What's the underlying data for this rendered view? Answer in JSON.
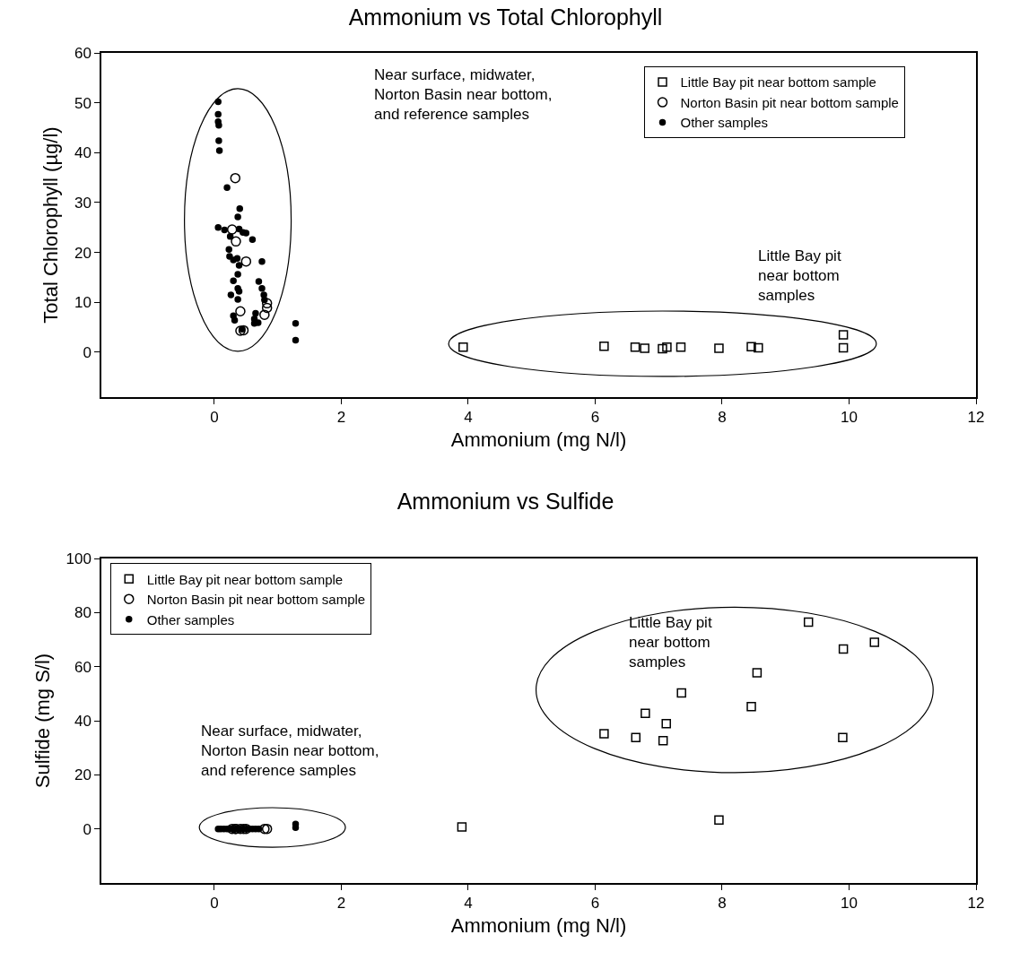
{
  "chart_data": [
    {
      "type": "scatter",
      "title": "Ammonium vs Total Chlorophyll",
      "xlabel": "Ammonium (mg N/l)",
      "ylabel": "Total Chlorophyll (µg/l)",
      "xlim": [
        -1.78,
        12
      ],
      "xticks": [
        0,
        2,
        4,
        6,
        8,
        10,
        12
      ],
      "ylim": [
        -9,
        60
      ],
      "yticks": [
        0,
        10,
        20,
        30,
        40,
        50,
        60
      ],
      "legend": "top right",
      "annotations": [
        "Near surface, midwater,\nNorton Basin near bottom,\nand reference samples",
        "Little Bay pit\nnear bottom\nsamples"
      ],
      "series": [
        {
          "name": "Little Bay pit near bottom sample",
          "color": "#000000",
          "marker": "square",
          "x": [
            3.92,
            6.14,
            6.63,
            6.78,
            7.06,
            7.13,
            7.35,
            7.95,
            8.46,
            8.57,
            9.91,
            9.91
          ],
          "values": [
            1.0,
            1.2,
            1.0,
            0.8,
            0.7,
            1.0,
            1.0,
            0.8,
            1.1,
            0.9,
            3.5,
            0.9
          ]
        },
        {
          "name": "Norton Basin pit near bottom sample",
          "color": "#000000",
          "marker": "circle",
          "x": [
            0.33,
            0.28,
            0.34,
            0.5,
            0.83,
            0.83,
            0.79,
            0.41,
            0.41,
            0.46
          ],
          "values": [
            34.9,
            24.6,
            22.2,
            18.2,
            9.8,
            8.9,
            7.5,
            8.2,
            4.3,
            4.4
          ]
        },
        {
          "name": "Other samples",
          "color": "#000000",
          "marker": "dot",
          "x": [
            0.06,
            0.06,
            0.06,
            0.07,
            0.07,
            0.08,
            0.2,
            0.4,
            0.37,
            0.06,
            0.16,
            0.39,
            0.45,
            0.5,
            0.6,
            0.25,
            0.23,
            0.24,
            0.3,
            0.36,
            0.39,
            0.75,
            0.37,
            0.33,
            0.3,
            0.7,
            0.75,
            0.37,
            0.39,
            0.26,
            0.78,
            0.37,
            0.79,
            0.3,
            0.32,
            0.65,
            0.63,
            0.63,
            0.69,
            0.44,
            1.28,
            1.28
          ],
          "values": [
            50.2,
            47.7,
            46.2,
            45.5,
            42.4,
            40.4,
            33.0,
            28.8,
            27.1,
            25.0,
            24.5,
            24.7,
            24.0,
            23.9,
            22.6,
            23.2,
            20.6,
            19.2,
            18.5,
            18.8,
            17.4,
            18.2,
            15.6,
            null,
            14.3,
            14.2,
            12.8,
            12.8,
            12.2,
            11.5,
            11.5,
            10.6,
            10.5,
            7.3,
            6.4,
            7.8,
            6.7,
            5.8,
            5.9,
            4.6,
            5.8,
            2.4
          ]
        }
      ]
    },
    {
      "type": "scatter",
      "title": "Ammonium vs Sulfide",
      "xlabel": "Ammonium (mg N/l)",
      "ylabel": "Sulfide (mg S/l)",
      "xlim": [
        -1.78,
        12
      ],
      "xticks": [
        0,
        2,
        4,
        6,
        8,
        10,
        12
      ],
      "ylim": [
        -20,
        100
      ],
      "yticks": [
        0,
        20,
        40,
        60,
        80,
        100
      ],
      "legend": "top left",
      "annotations": [
        "Near surface, midwater,\nNorton Basin near bottom,\nand reference samples",
        "Little Bay pit\nnear bottom\nsamples"
      ],
      "series": [
        {
          "name": "Little Bay pit near bottom sample",
          "color": "#000000",
          "marker": "square",
          "x": [
            9.36,
            10.4,
            9.91,
            8.55,
            7.36,
            8.46,
            6.79,
            7.12,
            6.14,
            6.64,
            7.07,
            9.9,
            3.9,
            7.95
          ],
          "values": [
            76.5,
            69.0,
            66.5,
            57.7,
            50.3,
            45.2,
            42.7,
            38.9,
            35.2,
            33.8,
            32.6,
            33.8,
            0.7,
            3.3
          ]
        },
        {
          "name": "Norton Basin pit near bottom sample",
          "color": "#000000",
          "marker": "circle",
          "x": [
            0.28,
            0.33,
            0.34,
            0.41,
            0.46,
            0.5,
            0.79,
            0.83
          ],
          "values": [
            0,
            0,
            0,
            0,
            0,
            0,
            0,
            0
          ]
        },
        {
          "name": "Other samples",
          "color": "#000000",
          "marker": "dot",
          "x": [
            0.06,
            0.1,
            0.15,
            0.2,
            0.25,
            0.3,
            0.35,
            0.4,
            0.45,
            0.5,
            0.55,
            0.6,
            0.65,
            0.7,
            1.28,
            1.28
          ],
          "values": [
            0,
            0,
            0,
            0,
            0,
            0,
            0,
            0,
            0,
            0,
            0,
            0,
            0,
            0,
            0.5,
            1.8
          ]
        }
      ]
    }
  ]
}
